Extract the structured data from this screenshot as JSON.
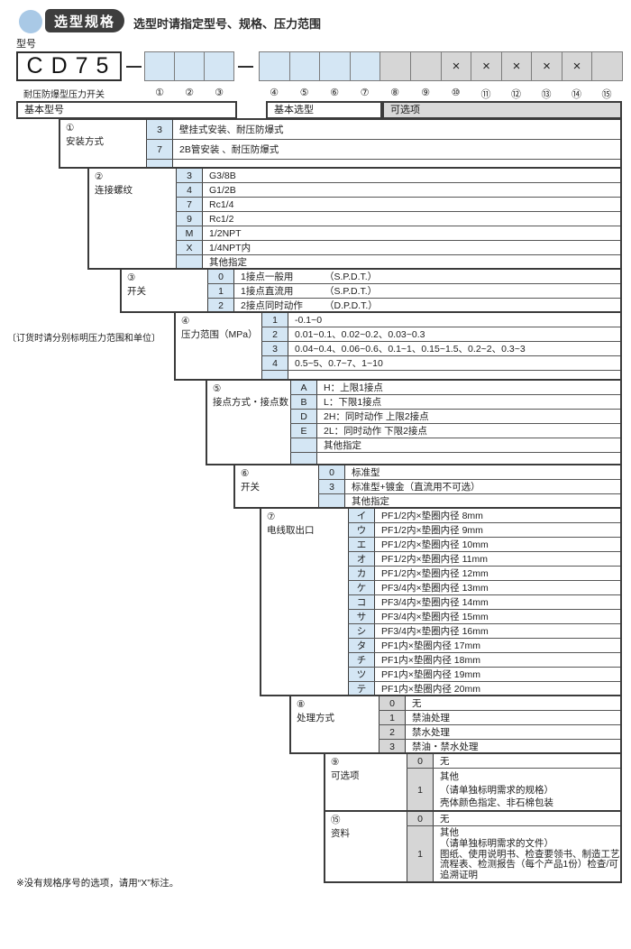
{
  "header": {
    "badge": "选型规格",
    "subtitle": "选型时请指定型号、规格、压力范围"
  },
  "model": {
    "label": "型号",
    "prefix": "CD75",
    "caption": "耐压防爆型压力开关",
    "separator": "—",
    "group1": [
      {
        "num": "①",
        "fill": "blue",
        "mark": ""
      },
      {
        "num": "②",
        "fill": "blue",
        "mark": ""
      },
      {
        "num": "③",
        "fill": "blue",
        "mark": ""
      }
    ],
    "group2": [
      {
        "num": "④",
        "fill": "blue",
        "mark": ""
      },
      {
        "num": "⑤",
        "fill": "blue",
        "mark": ""
      },
      {
        "num": "⑥",
        "fill": "blue",
        "mark": ""
      },
      {
        "num": "⑦",
        "fill": "blue",
        "mark": ""
      },
      {
        "num": "⑧",
        "fill": "gray",
        "mark": ""
      },
      {
        "num": "⑨",
        "fill": "gray",
        "mark": ""
      },
      {
        "num": "⑩",
        "fill": "gray",
        "mark": "×"
      },
      {
        "num": "⑪",
        "fill": "gray",
        "mark": "×"
      },
      {
        "num": "⑫",
        "fill": "gray",
        "mark": "×"
      },
      {
        "num": "⑬",
        "fill": "gray",
        "mark": "×"
      },
      {
        "num": "⑭",
        "fill": "gray",
        "mark": "×"
      },
      {
        "num": "⑮",
        "fill": "gray",
        "mark": ""
      }
    ]
  },
  "table": {
    "headers": {
      "basic_model": "基本型号",
      "basic_selection": "基本选型",
      "optional": "可选项"
    },
    "sections": [
      {
        "num": "①",
        "name": "安装方式",
        "tone": "blue",
        "rows": [
          {
            "code": "3",
            "desc": "壁挂式安装、耐压防爆式"
          },
          {
            "code": "7",
            "desc": "2B管安装 、耐压防爆式"
          }
        ]
      },
      {
        "num": "②",
        "name": "连接螺纹",
        "tone": "blue",
        "rows": [
          {
            "code": "3",
            "desc": "G3/8B"
          },
          {
            "code": "4",
            "desc": "G1/2B"
          },
          {
            "code": "7",
            "desc": "Rc1/4"
          },
          {
            "code": "9",
            "desc": "Rc1/2"
          },
          {
            "code": "M",
            "desc": "1/2NPT"
          },
          {
            "code": "X",
            "desc": "1/4NPT内"
          },
          {
            "code": "",
            "desc": "其他指定"
          }
        ]
      },
      {
        "num": "③",
        "name": "开关",
        "tone": "blue",
        "rows": [
          {
            "code": "0",
            "desc": "1接点一般用",
            "desc2": "（S.P.D.T.）"
          },
          {
            "code": "1",
            "desc": "1接点直流用",
            "desc2": "（S.P.D.T.）"
          },
          {
            "code": "2",
            "desc": "2接点同时动作",
            "desc2": "（D.P.D.T.）"
          }
        ]
      },
      {
        "num": "④",
        "name": "压力范围（MPa）",
        "tone": "blue",
        "rows": [
          {
            "code": "1",
            "desc": "-0.1~0"
          },
          {
            "code": "2",
            "desc": "0.01~0.1、0.02~0.2、0.03~0.3"
          },
          {
            "code": "3",
            "desc": "0.04~0.4、0.06~0.6、0.1~1、0.15~1.5、0.2~2、0.3~3"
          },
          {
            "code": "4",
            "desc": "0.5~5、0.7~7、1~10"
          }
        ]
      },
      {
        "num": "⑤",
        "name": "接点方式・接点数",
        "tone": "blue",
        "rows": [
          {
            "code": "A",
            "desc": "H：上限1接点"
          },
          {
            "code": "B",
            "desc": "L：下限1接点"
          },
          {
            "code": "D",
            "desc": "2H：同时动作  上限2接点"
          },
          {
            "code": "E",
            "desc": "2L：同时动作  下限2接点"
          },
          {
            "code": "",
            "desc": "其他指定"
          }
        ]
      },
      {
        "num": "⑥",
        "name": "开关",
        "tone": "blue",
        "rows": [
          {
            "code": "0",
            "desc": "标准型"
          },
          {
            "code": "3",
            "desc": "标准型+镀金（直流用不可选）"
          },
          {
            "code": "",
            "desc": "其他指定"
          }
        ]
      },
      {
        "num": "⑦",
        "name": "电线取出口",
        "tone": "blue",
        "rows": [
          {
            "code": "イ",
            "desc": "PF1/2内×垫圈内径 8mm"
          },
          {
            "code": "ウ",
            "desc": "PF1/2内×垫圈内径 9mm"
          },
          {
            "code": "エ",
            "desc": "PF1/2内×垫圈内径 10mm"
          },
          {
            "code": "オ",
            "desc": "PF1/2内×垫圈内径 11mm"
          },
          {
            "code": "カ",
            "desc": "PF1/2内×垫圈内径 12mm"
          },
          {
            "code": "ケ",
            "desc": "PF3/4内×垫圈内径 13mm"
          },
          {
            "code": "コ",
            "desc": "PF3/4内×垫圈内径 14mm"
          },
          {
            "code": "サ",
            "desc": "PF3/4内×垫圈内径 15mm"
          },
          {
            "code": "シ",
            "desc": "PF3/4内×垫圈内径 16mm"
          },
          {
            "code": "タ",
            "desc": "PF1内×垫圈内径 17mm"
          },
          {
            "code": "チ",
            "desc": "PF1内×垫圈内径 18mm"
          },
          {
            "code": "ツ",
            "desc": "PF1内×垫圈内径 19mm"
          },
          {
            "code": "テ",
            "desc": "PF1内×垫圈内径 20mm"
          }
        ]
      },
      {
        "num": "⑧",
        "name": "处理方式",
        "tone": "gray",
        "rows": [
          {
            "code": "0",
            "desc": "无"
          },
          {
            "code": "1",
            "desc": "禁油处理"
          },
          {
            "code": "2",
            "desc": "禁水处理"
          },
          {
            "code": "3",
            "desc": "禁油・禁水处理"
          }
        ]
      },
      {
        "num": "⑨",
        "name": "可选项",
        "tone": "gray",
        "rows": [
          {
            "code": "0",
            "desc": "无"
          },
          {
            "code": "1",
            "lines": [
              "其他",
              "（请单独标明需求的规格）",
              "壳体颜色指定、非石棉包装"
            ]
          }
        ]
      },
      {
        "num": "⑮",
        "name": "资料",
        "tone": "gray",
        "rows": [
          {
            "code": "0",
            "desc": "无"
          },
          {
            "code": "1",
            "lines": [
              "其他",
              "（请单独标明需求的文件）",
              "图纸、使用说明书、检查要领书、制造工艺",
              "流程表、检测报告（每个产品1份）检查/可",
              "追溯证明"
            ]
          }
        ]
      }
    ]
  },
  "notes": {
    "order": "〔订货时请分别标明压力范围和单位〕",
    "footnote": "※没有规格序号的选项，请用“X”标注。"
  },
  "colors": {
    "accent_blue": "#d4e6f4",
    "cell_gray": "#d6d6d6",
    "header_gray": "#d9d9d9",
    "badge_bg": "#3e3e3e",
    "circle_blue": "#a9c9e6"
  }
}
